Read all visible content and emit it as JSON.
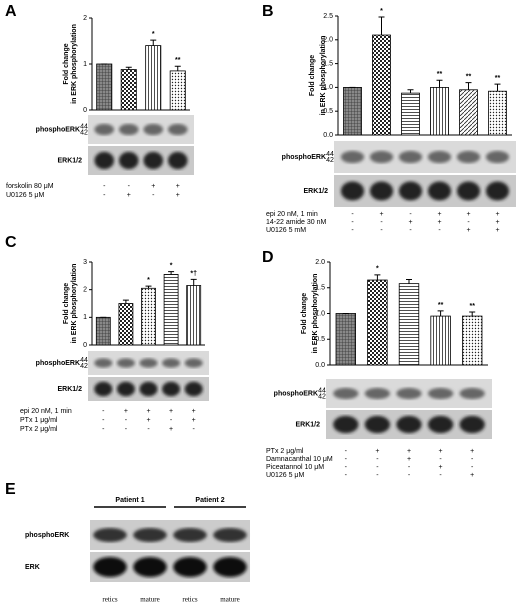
{
  "chart_data": [
    {
      "type": "bar",
      "panel": "A",
      "ylabel": [
        "Fold change",
        "in ERK phosphorylation"
      ],
      "categories": [
        null,
        null,
        null,
        null
      ],
      "values": [
        1.0,
        0.88,
        1.4,
        0.85
      ],
      "errors": [
        0,
        0.05,
        0.12,
        0.1
      ],
      "annotations": [
        null,
        null,
        "*",
        "**"
      ],
      "patterns": [
        "grid",
        "checker",
        "vlines",
        "dots"
      ],
      "ylim": [
        0,
        2
      ],
      "yticks": [
        0,
        1,
        2
      ],
      "blot_labels": [
        "phosphoERK",
        "ERK1/2"
      ],
      "kda": [
        "44",
        "42"
      ],
      "treatments": [
        {
          "label": "forskolin 80 μM",
          "marks": [
            "-",
            "-",
            "+",
            "+"
          ]
        },
        {
          "label": "U0126 5 μM",
          "marks": [
            "-",
            "+",
            "-",
            "+"
          ]
        }
      ]
    },
    {
      "type": "bar",
      "panel": "B",
      "ylabel": [
        "Fold change",
        "in ERK phosphorylation"
      ],
      "categories": [
        null,
        null,
        null,
        null,
        null,
        null
      ],
      "values": [
        1.0,
        2.1,
        0.88,
        1.0,
        0.95,
        0.92
      ],
      "errors": [
        0,
        0.38,
        0.07,
        0.15,
        0.15,
        0.15
      ],
      "annotations": [
        null,
        "*",
        null,
        "**",
        "**",
        "**"
      ],
      "patterns": [
        "grid",
        "checker",
        "hlines",
        "vlines",
        "diag",
        "dots"
      ],
      "ylim": [
        0,
        2.5
      ],
      "yticks": [
        {
          "value": 0,
          "label": "0.0"
        },
        {
          "value": 0.5,
          "label": "0.5"
        },
        {
          "value": 1,
          "label": "1.0"
        },
        {
          "value": 1.5,
          "label": "1.5"
        },
        {
          "value": 2,
          "label": "2.0"
        },
        {
          "value": 2.5,
          "label": "2.5"
        }
      ],
      "blot_labels": [
        "phosphoERK",
        "ERK1/2"
      ],
      "kda": [
        "44",
        "42"
      ],
      "treatments": [
        {
          "label": "epi 20 nM, 1 min",
          "marks": [
            "-",
            "+",
            "-",
            "+",
            "+",
            "+"
          ]
        },
        {
          "label": "14-22 amide 30 nM",
          "marks": [
            "-",
            "-",
            "+",
            "+",
            "-",
            "+"
          ]
        },
        {
          "label": "U0126 5 mM",
          "marks": [
            "-",
            "-",
            "-",
            "-",
            "+",
            "+"
          ]
        }
      ]
    },
    {
      "type": "bar",
      "panel": "C",
      "ylabel": [
        "Fold change",
        "in ERK phosphorylation"
      ],
      "categories": [
        null,
        null,
        null,
        null,
        null
      ],
      "values": [
        1.0,
        1.5,
        2.05,
        2.55,
        2.15
      ],
      "errors": [
        0,
        0.12,
        0.08,
        0.1,
        0.22
      ],
      "annotations": [
        null,
        null,
        "*",
        "*",
        "*†"
      ],
      "patterns": [
        "grid",
        "checker",
        "dots",
        "hlines",
        "vlines"
      ],
      "ylim": [
        0,
        3
      ],
      "yticks": [
        0,
        1,
        2,
        3
      ],
      "blot_labels": [
        "phosphoERK",
        "ERK1/2"
      ],
      "kda": [
        "44",
        "42"
      ],
      "treatments": [
        {
          "label": "epi 20 nM, 1 min",
          "marks": [
            "-",
            "+",
            "+",
            "+",
            "+"
          ]
        },
        {
          "label": "PTx 1 μg/ml",
          "marks": [
            "-",
            "-",
            "+",
            "-",
            "+"
          ]
        },
        {
          "label": "PTx 2 μg/ml",
          "marks": [
            "-",
            "-",
            "-",
            "+",
            "-"
          ]
        }
      ]
    },
    {
      "type": "bar",
      "panel": "D",
      "ylabel": [
        "Fold change",
        "in ERK phosphorylation"
      ],
      "categories": [
        null,
        null,
        null,
        null,
        null
      ],
      "values": [
        1.0,
        1.65,
        1.58,
        0.95,
        0.95
      ],
      "errors": [
        0,
        0.1,
        0.08,
        0.1,
        0.08
      ],
      "annotations": [
        null,
        "*",
        null,
        "**",
        "**"
      ],
      "patterns": [
        "grid",
        "checker",
        "hlines",
        "vlines",
        "dots"
      ],
      "ylim": [
        0,
        2
      ],
      "yticks": [
        {
          "value": 0,
          "label": "0.0"
        },
        {
          "value": 0.5,
          "label": "0.5"
        },
        {
          "value": 1,
          "label": "1.0"
        },
        {
          "value": 1.5,
          "label": "1.5"
        },
        {
          "value": 2,
          "label": "2.0"
        }
      ],
      "blot_labels": [
        "phosphoERK",
        "ERK1/2"
      ],
      "kda": [
        "44",
        "42"
      ],
      "treatments": [
        {
          "label": "PTx 2 μg/ml",
          "marks": [
            "-",
            "+",
            "+",
            "+",
            "+"
          ]
        },
        {
          "label": "Damnacanthal 10 μM",
          "marks": [
            "-",
            "-",
            "+",
            "-",
            "-"
          ]
        },
        {
          "label": "Piceatannol 10 μM",
          "marks": [
            "-",
            "-",
            "-",
            "+",
            "-"
          ]
        },
        {
          "label": "U0126 5 μM",
          "marks": [
            "-",
            "-",
            "-",
            "-",
            "+"
          ]
        }
      ]
    }
  ],
  "panel_e": {
    "panel": "E",
    "groups": [
      "Patient 1",
      "Patient 2"
    ],
    "blot_labels": [
      "phosphoERK",
      "ERK"
    ],
    "lanes": [
      "retics",
      "mature",
      "retics",
      "mature"
    ]
  }
}
